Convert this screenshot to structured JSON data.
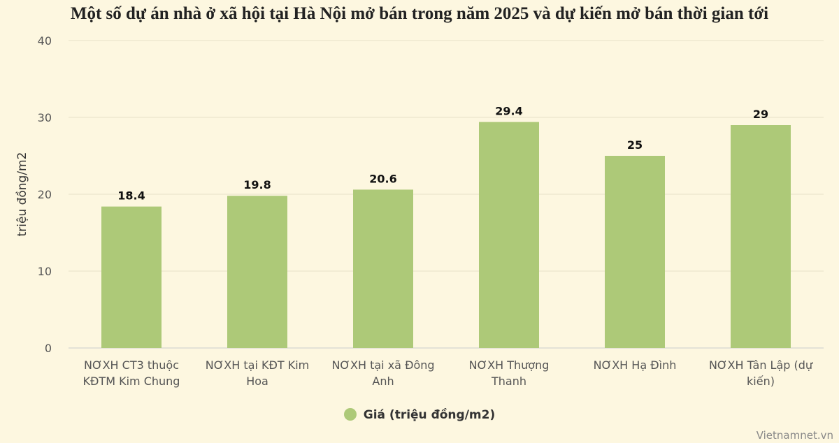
{
  "chart_data": {
    "type": "bar",
    "title": "Một số dự án nhà ở xã hội tại Hà Nội mở bán trong năm 2025 và dự kiến mở bán thời gian tới",
    "ylabel": "triệu đồng/m2",
    "xlabel": "",
    "ylim": [
      0,
      40
    ],
    "yticks": [
      0,
      10,
      20,
      30,
      40
    ],
    "grid": true,
    "legend_placement": "bottom",
    "categories": [
      [
        "NƠXH CT3 thuộc",
        "KĐTM Kim Chung"
      ],
      [
        "NƠXH tại KĐT Kim",
        "Hoa"
      ],
      [
        "NƠXH tại xã Đông",
        "Anh"
      ],
      [
        "NƠXH Thượng",
        "Thanh"
      ],
      [
        "NƠXH Hạ Đình"
      ],
      [
        "NƠXH Tân Lập (dự",
        "kiến)"
      ]
    ],
    "series": [
      {
        "name": "Giá (triệu đồng/m2)",
        "values": [
          18.4,
          19.8,
          20.6,
          29.4,
          25,
          29
        ],
        "color": "#adc978"
      }
    ]
  },
  "source": "Vietnamnet.vn"
}
